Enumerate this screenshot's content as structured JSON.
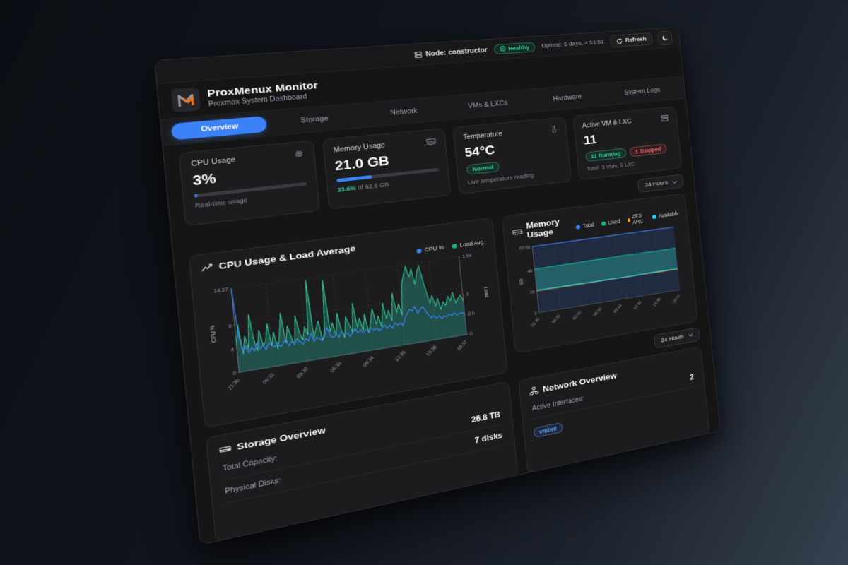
{
  "topbar": {
    "node_label": "Node: constructor",
    "health_label": "Healthy",
    "uptime": "Uptime: 5 days, 4:51:51",
    "refresh_label": "Refresh"
  },
  "header": {
    "title": "ProxMenux Monitor",
    "subtitle": "Proxmox System Dashboard"
  },
  "tabs": [
    {
      "label": "Overview",
      "active": true
    },
    {
      "label": "Storage",
      "active": false
    },
    {
      "label": "Network",
      "active": false
    },
    {
      "label": "VMs & LXCs",
      "active": false
    },
    {
      "label": "Hardware",
      "active": false
    },
    {
      "label": "System Logs",
      "active": false
    }
  ],
  "stats": {
    "cpu": {
      "label": "CPU Usage",
      "value": "3%",
      "percent": 3,
      "caption": "Real-time usage"
    },
    "memory": {
      "label": "Memory Usage",
      "value": "21.0 GB",
      "percent": 33.6,
      "caption_highlight": "33.6%",
      "caption_rest": " of 62.6 GB"
    },
    "temperature": {
      "label": "Temperature",
      "value": "54°C",
      "badge": "Normal",
      "caption": "Live temperature reading"
    },
    "vms": {
      "label": "Active VM & LXC",
      "value": "11",
      "badge_running": "11 Running",
      "badge_stopped": "1 Stopped",
      "caption": "Total: 3 VMs, 9 LXC"
    }
  },
  "controls": {
    "range_top": "24 Hours",
    "range_bottom": "24 Hours"
  },
  "storage": {
    "title": "Storage Overview",
    "rows": [
      {
        "label": "Total Capacity:",
        "value": "26.8 TB"
      },
      {
        "label": "Physical Disks:",
        "value": "7 disks"
      }
    ]
  },
  "network": {
    "title": "Network Overview",
    "rows": [
      {
        "label": "Active Interfaces:",
        "value": "2"
      }
    ],
    "badge": "vmbr0"
  },
  "colors": {
    "accent": "#3b82f6",
    "green": "#10b981",
    "cyan": "#22d3ee",
    "orange": "#f59e0b",
    "red": "#f87171"
  },
  "chart_data": [
    {
      "id": "cpu_load",
      "type": "line",
      "title": "CPU Usage & Load Average",
      "x_ticks": [
        "21:30",
        "00:31",
        "03:32",
        "06:33",
        "09:34",
        "12:35",
        "15:36",
        "18:37"
      ],
      "left_axis": {
        "label": "CPU %",
        "ticks": [
          0,
          4,
          8,
          14.27
        ],
        "max": 14.27
      },
      "right_axis": {
        "label": "Load",
        "ticks": [
          0,
          0.5,
          1,
          1.94
        ],
        "max": 1.94
      },
      "grid": "dashed",
      "legend": [
        {
          "label": "CPU %",
          "color": "#3b82f6"
        },
        {
          "label": "Load Avg",
          "color": "#10b981"
        }
      ],
      "series": [
        {
          "name": "Load Avg",
          "axis": "right",
          "color": "#34d399",
          "fill": "rgba(45,212,191,0.28)",
          "values": [
            0.62,
            1.1,
            0.4,
            0.82,
            0.5,
            1.3,
            0.7,
            0.42,
            0.9,
            0.55,
            0.6,
            1.02,
            0.48,
            0.8,
            0.4,
            0.72,
            1.22,
            0.5,
            0.9,
            0.62,
            0.42,
            1.1,
            0.7,
            0.5,
            0.82,
            0.6,
            1.9,
            0.52,
            0.72,
            0.9,
            0.42,
            0.62,
            1.85,
            0.6,
            0.8,
            0.5,
            1.02,
            0.62,
            0.4,
            0.9,
            0.7,
            0.5,
            1.2,
            0.6,
            0.82,
            0.5,
            0.9,
            0.42,
            0.7,
            1,
            0.6,
            0.8,
            0.52,
            1.1,
            0.7,
            0.9,
            0.62,
            1.3,
            0.8,
            1.02,
            0.72,
            1.5,
            1.72,
            1.9,
            1.62,
            1.82,
            1.42,
            1.7,
            1.88,
            1.52,
            1.2,
            0.9,
            1.1,
            0.82,
            1,
            0.72,
            0.9,
            0.8,
            1.02,
            0.9,
            1.1,
            0.82,
            0.92,
            1,
            0.86
          ]
        },
        {
          "name": "CPU %",
          "axis": "left",
          "color": "#3b82f6",
          "values": [
            14.2,
            6.1,
            3.5,
            4.2,
            3,
            3.8,
            3.2,
            4.5,
            3.4,
            3.9,
            3.1,
            4.2,
            3.6,
            3.3,
            4,
            3.2,
            3.7,
            4.4,
            3.1,
            3.8,
            3.3,
            4.1,
            3.5,
            3,
            3.9,
            3.4,
            4.6,
            3.2,
            3.8,
            3.5,
            3.1,
            4,
            5.2,
            3.6,
            3.3,
            3.9,
            3.2,
            4.1,
            3.5,
            3.8,
            3.1,
            3.6,
            4.3,
            3.4,
            3.9,
            3.2,
            3.7,
            3.3,
            4,
            3.5,
            3.8,
            3.2,
            3.6,
            4.1,
            3.4,
            3.9,
            3.3,
            4.2,
            3.7,
            4,
            3.5,
            4.8,
            5.5,
            6.2,
            5.8,
            6.5,
            5.2,
            5.9,
            6.3,
            5.5,
            4.6,
            4,
            4.4,
            3.8,
            4.2,
            3.6,
            4,
            3.8,
            4.2,
            3.9,
            4.3,
            3.8,
            4,
            4.1,
            3.9
          ]
        }
      ]
    },
    {
      "id": "memory",
      "type": "area",
      "title": "Memory Usage",
      "x_ticks": [
        "21:30",
        "00:31",
        "03:32",
        "06:33",
        "09:34",
        "12:35",
        "15:36",
        "18:37"
      ],
      "left_axis": {
        "label": "GB",
        "ticks": [
          0,
          20,
          40,
          62.56
        ],
        "max": 62.56
      },
      "grid": "solid",
      "legend": [
        {
          "label": "Total",
          "color": "#3b82f6"
        },
        {
          "label": "Used",
          "color": "#10b981"
        },
        {
          "label": "ZFS ARC",
          "color": "#f59e0b"
        },
        {
          "label": "Available",
          "color": "#22d3ee"
        }
      ],
      "series": [
        {
          "name": "Total",
          "color": "#3b82f6",
          "fill": "rgba(36,58,100,0.5)",
          "values": [
            62.56,
            62.56,
            62.56,
            62.56,
            62.56,
            62.56,
            62.56,
            62.56,
            62.56
          ]
        },
        {
          "name": "Used",
          "color": "#10b981",
          "values": [
            41.2,
            41.5,
            41.3,
            41.6,
            41.4,
            41.7,
            41.5,
            41.3,
            41.6
          ]
        },
        {
          "name": "ZFS ARC",
          "color": "#f59e0b",
          "values": [
            20.5,
            20.6,
            20.5,
            20.7,
            20.6,
            20.7,
            20.6,
            20.5,
            20.6
          ]
        },
        {
          "name": "Available",
          "color": "#22d3ee",
          "values": [
            21.3,
            21.1,
            21.2,
            20.9,
            21.1,
            20.8,
            21,
            21.2,
            20.9
          ]
        }
      ],
      "band_fill": {
        "between": [
          "Used",
          "Available"
        ],
        "color": "rgba(45,212,191,0.3)"
      }
    }
  ]
}
